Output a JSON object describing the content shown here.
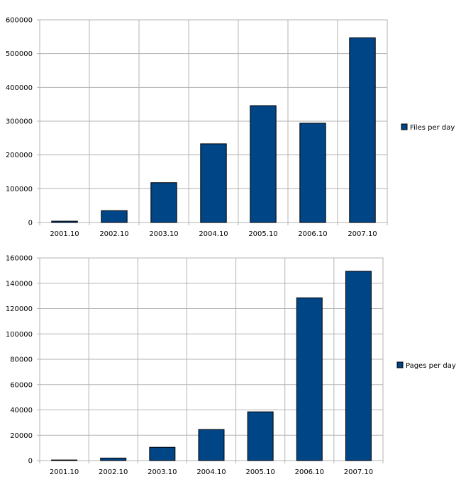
{
  "chart_data": [
    {
      "type": "bar",
      "categories": [
        "2001.10",
        "2002.10",
        "2003.10",
        "2004.10",
        "2005.10",
        "2006.10",
        "2007.10"
      ],
      "series": [
        {
          "name": "Files per day",
          "values": [
            4000,
            35000,
            118000,
            233000,
            346000,
            294000,
            547000
          ]
        }
      ],
      "ylim": [
        0,
        600000
      ],
      "yticks": [
        "0",
        "100000",
        "200000",
        "300000",
        "400000",
        "500000",
        "600000"
      ],
      "grid": true,
      "legend": "right",
      "color": "#004586"
    },
    {
      "type": "bar",
      "categories": [
        "2001.10",
        "2002.10",
        "2003.10",
        "2004.10",
        "2005.10",
        "2006.10",
        "2007.10"
      ],
      "series": [
        {
          "name": "Pages per day",
          "values": [
            500,
            2000,
            10500,
            24500,
            38500,
            128500,
            149500
          ]
        }
      ],
      "ylim": [
        0,
        160000
      ],
      "yticks": [
        "0",
        "20000",
        "40000",
        "60000",
        "80000",
        "100000",
        "120000",
        "140000",
        "160000"
      ],
      "grid": true,
      "legend": "right",
      "color": "#004586"
    }
  ]
}
